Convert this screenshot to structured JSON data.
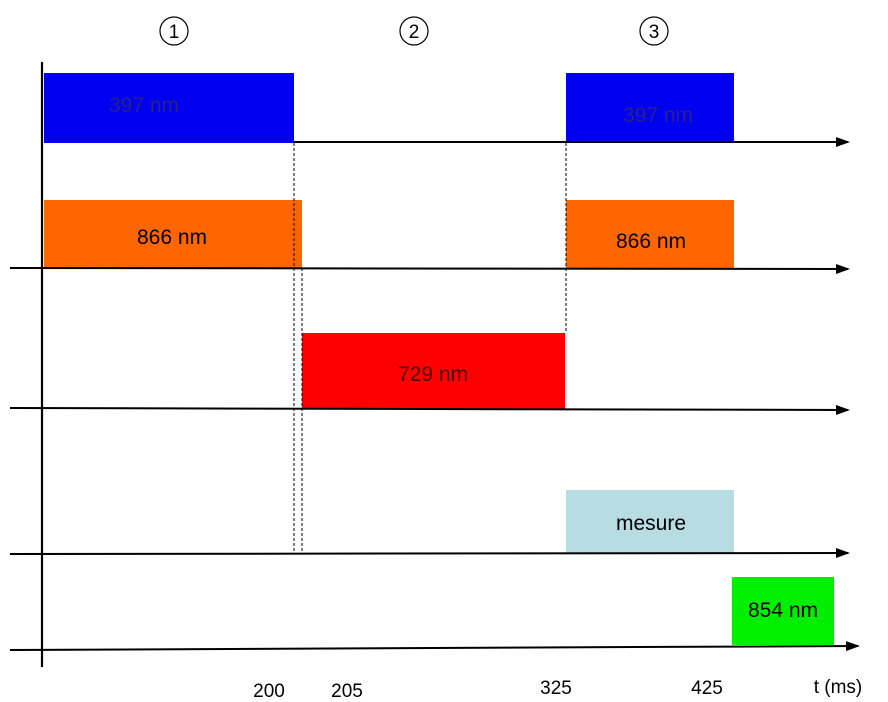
{
  "phases": [
    "1",
    "2",
    "3"
  ],
  "pulses": {
    "p397_a": {
      "label": "397 nm",
      "color": "#0000f0",
      "text_color": "#2a1f8c"
    },
    "p866_a": {
      "label": "866 nm",
      "color": "#ff6600",
      "text_color": "#000000"
    },
    "p729": {
      "label": "729 nm",
      "color": "#ff0000",
      "text_color": "#4a0000"
    },
    "p397_b": {
      "label": "397 nm",
      "color": "#0000f0",
      "text_color": "#2a1f8c"
    },
    "p866_b": {
      "label": "866 nm",
      "color": "#ff6600",
      "text_color": "#000000"
    },
    "measure": {
      "label": "mesure",
      "color": "#b7dde3",
      "text_color": "#000000"
    },
    "p854": {
      "label": "854 nm",
      "color": "#00ee00",
      "text_color": "#000000"
    }
  },
  "time_ticks": [
    "200",
    "205",
    "325",
    "425"
  ],
  "time_axis_label": "t (ms)"
}
